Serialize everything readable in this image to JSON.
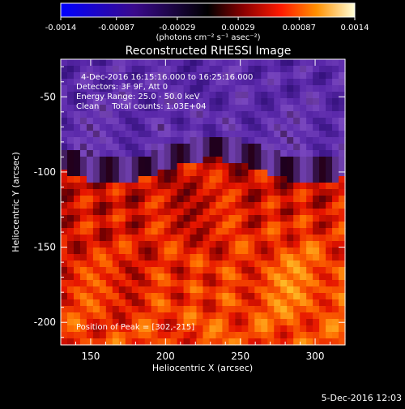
{
  "chart_data": {
    "type": "heatmap",
    "title": "Reconstructed RHESSI Image",
    "xlabel": "Heliocentric X (arcsec)",
    "ylabel": "Heliocentric Y (arcsec)",
    "xlim": [
      130,
      320
    ],
    "ylim": [
      -215,
      -25
    ],
    "xticks": [
      "150",
      "200",
      "250",
      "300"
    ],
    "xtick_values": [
      150,
      200,
      250,
      300
    ],
    "yticks": [
      "-50",
      "-100",
      "-150",
      "-200"
    ],
    "ytick_values": [
      -50,
      -100,
      -150,
      -200
    ],
    "colorbar": {
      "range": [
        -0.0014,
        0.0014
      ],
      "ticks": [
        "-0.0014",
        "-0.00087",
        "-0.00029",
        "0.00029",
        "0.00087",
        "0.0014"
      ],
      "tick_values": [
        -0.0014,
        -0.00087,
        -0.00029,
        0.00029,
        0.00087,
        0.0014
      ],
      "unit_label": "(photons cm⁻² s⁻¹ asec⁻²)"
    },
    "annotations": [
      "4-Dec-2016 16:15:16.000 to 16:25:16.000",
      "Detectors: 3F 9F, Att 0",
      "Energy Range: 25.0 - 50.0 keV",
      "Clean     Total counts: 1.03E+04"
    ],
    "peak_label": "Position of Peak = [302,-215]",
    "peak": [
      302,
      -215
    ]
  },
  "footer_timestamp": "5-Dec-2016 12:03",
  "colors": {
    "background": "#000000",
    "text": "#ffffff"
  }
}
